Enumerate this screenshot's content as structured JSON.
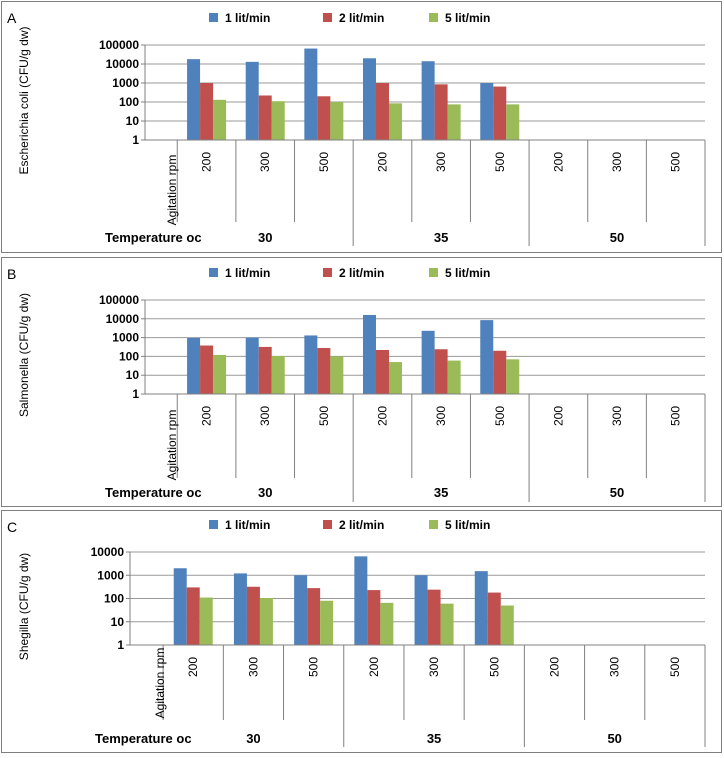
{
  "legend": {
    "series_names": [
      "1  lit/min",
      "2 lit/min",
      "5  lit/min"
    ],
    "colors": [
      "#4F81BD",
      "#C0504D",
      "#9BBB59"
    ]
  },
  "table": {
    "agitation_label": "Agitation rpm",
    "temperature_label": "Temperature oc"
  },
  "chart_data": [
    {
      "type": "bar",
      "panel_label": "A",
      "ylabel": "Escherichia coli (CFU/g dw)",
      "yscale": "log",
      "ylim": [
        1,
        100000
      ],
      "ytick_labels": [
        "1",
        "10",
        "100",
        "1000",
        "10000",
        "100000"
      ],
      "categories": [
        "200",
        "300",
        "500",
        "200",
        "300",
        "500",
        "200",
        "300",
        "500"
      ],
      "groups": [
        {
          "label": "30",
          "span": 3
        },
        {
          "label": "35",
          "span": 3
        },
        {
          "label": "50",
          "span": 3
        }
      ],
      "series": [
        {
          "name": "1  lit/min",
          "values": [
            18000,
            13000,
            65000,
            20000,
            14000,
            1000,
            null,
            null,
            null
          ]
        },
        {
          "name": "2 lit/min",
          "values": [
            1000,
            220,
            200,
            1000,
            850,
            650,
            null,
            null,
            null
          ]
        },
        {
          "name": "5  lit/min",
          "values": [
            130,
            110,
            100,
            85,
            75,
            75,
            null,
            null,
            null
          ]
        }
      ]
    },
    {
      "type": "bar",
      "panel_label": "B",
      "ylabel": "Salmonella (CFU/g dw)",
      "yscale": "log",
      "ylim": [
        1,
        100000
      ],
      "ytick_labels": [
        "1",
        "10",
        "100",
        "1000",
        "10000",
        "100000"
      ],
      "categories": [
        "200",
        "300",
        "500",
        "200",
        "300",
        "500",
        "200",
        "300",
        "500"
      ],
      "groups": [
        {
          "label": "30",
          "span": 3
        },
        {
          "label": "35",
          "span": 3
        },
        {
          "label": "50",
          "span": 3
        }
      ],
      "series": [
        {
          "name": "1  lit/min",
          "values": [
            950,
            1000,
            1300,
            16000,
            2300,
            8500,
            null,
            null,
            null
          ]
        },
        {
          "name": "2 lit/min",
          "values": [
            380,
            320,
            280,
            220,
            240,
            200,
            null,
            null,
            null
          ]
        },
        {
          "name": "5  lit/min",
          "values": [
            120,
            105,
            100,
            50,
            60,
            70,
            null,
            null,
            null
          ]
        }
      ]
    },
    {
      "type": "bar",
      "panel_label": "C",
      "ylabel": "Shegilla (CFU/g dw)",
      "yscale": "log",
      "ylim": [
        1,
        10000
      ],
      "ytick_labels": [
        "1",
        "10",
        "100",
        "1000",
        "10000"
      ],
      "categories": [
        "200",
        "300",
        "500",
        "200",
        "300",
        "500",
        "200",
        "300",
        "500"
      ],
      "groups": [
        {
          "label": "30",
          "span": 3
        },
        {
          "label": "35",
          "span": 3
        },
        {
          "label": "50",
          "span": 3
        }
      ],
      "series": [
        {
          "name": "1  lit/min",
          "values": [
            2000,
            1200,
            1000,
            6500,
            1000,
            1500,
            null,
            null,
            null
          ]
        },
        {
          "name": "2 lit/min",
          "values": [
            300,
            320,
            280,
            230,
            240,
            180,
            null,
            null,
            null
          ]
        },
        {
          "name": "5  lit/min",
          "values": [
            110,
            105,
            80,
            65,
            60,
            50,
            null,
            null,
            null
          ]
        }
      ]
    }
  ]
}
